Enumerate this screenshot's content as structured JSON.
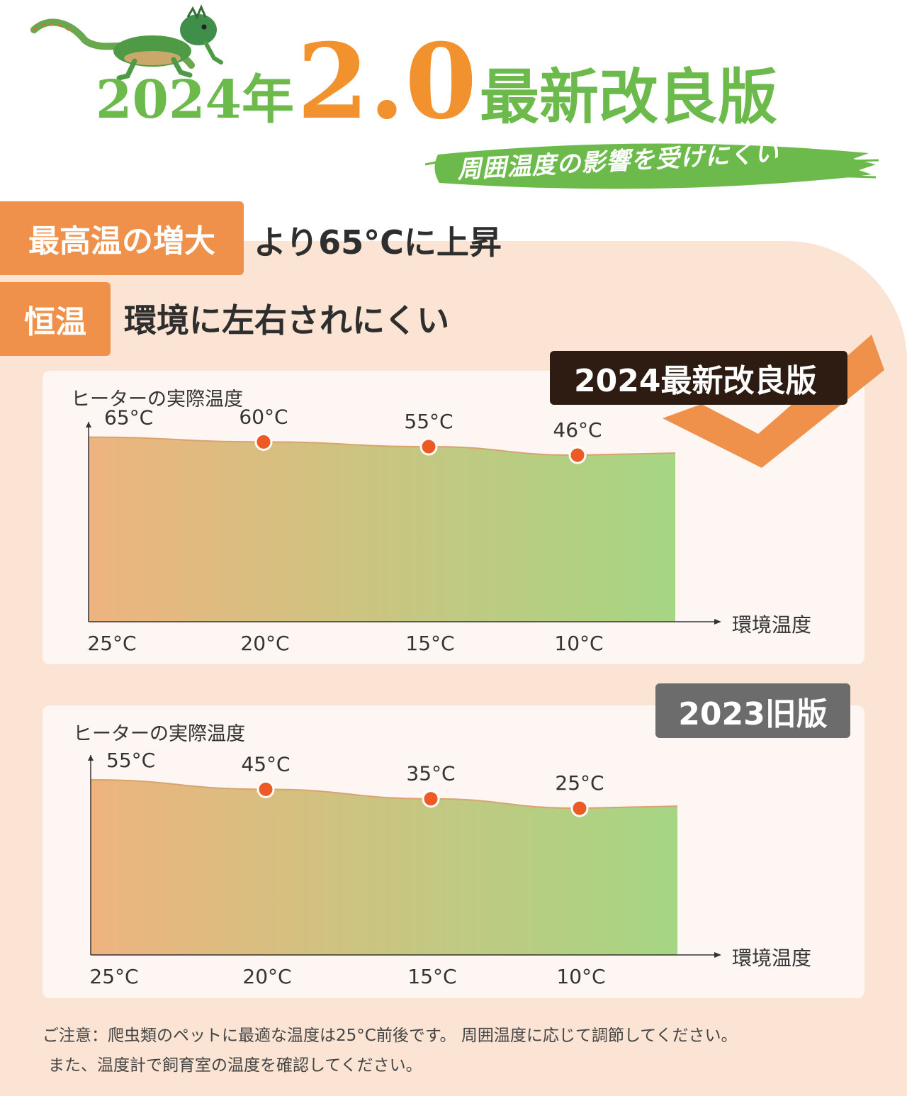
{
  "header": {
    "year_text": "2024年",
    "version_text": "2.0",
    "headline_rest": "最新改良版",
    "subtitle": "周囲温度の影響を受けにくい"
  },
  "features": [
    {
      "tag": "最高温の増大",
      "text": "より65°Cに上昇"
    },
    {
      "tag": "恒温",
      "text": "環境に左右されにくい"
    }
  ],
  "badges": {
    "new": "2024最新改良版",
    "old": "2023旧版"
  },
  "colors": {
    "orange_accent": "#f0914b",
    "green_accent": "#6cba4c",
    "dot_color": "#ee5a24",
    "fill_start": "#eeb47f",
    "fill_end": "#a5d683"
  },
  "chart_data": [
    {
      "type": "area",
      "ylabel": "ヒーターの実際温度",
      "xlabel": "環境温度",
      "x": [
        "25°C",
        "20°C",
        "15°C",
        "10°C"
      ],
      "series": [
        {
          "values": [
            65,
            60,
            55,
            46
          ]
        }
      ],
      "data_labels": [
        "65°C",
        "60°C",
        "55°C",
        "46°C"
      ]
    },
    {
      "type": "area",
      "ylabel": "ヒーターの実際温度",
      "xlabel": "環境温度",
      "x": [
        "25°C",
        "20°C",
        "15°C",
        "10°C"
      ],
      "series": [
        {
          "values": [
            55,
            45,
            35,
            25
          ]
        }
      ],
      "data_labels": [
        "55°C",
        "45°C",
        "35°C",
        "25°C"
      ]
    }
  ],
  "note": {
    "line1": "ご注意：爬虫類のペットに最適な温度は25°C前後です。 周囲温度に応じて調節してください。",
    "line2": "また、温度計で飼育室の温度を確認してください。"
  }
}
